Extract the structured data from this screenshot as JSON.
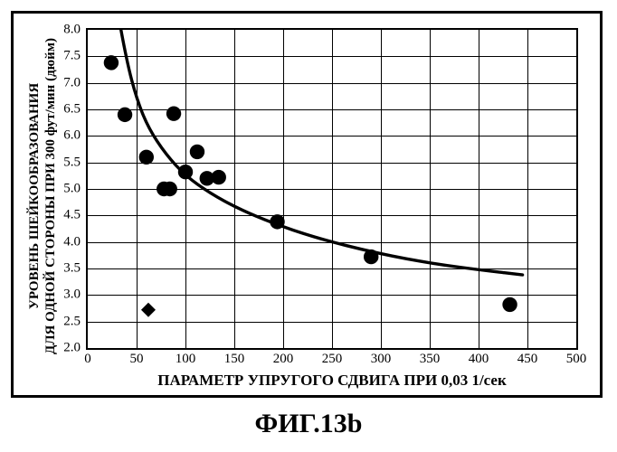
{
  "chart": {
    "type": "scatter",
    "xlim": [
      0,
      500
    ],
    "ylim": [
      2.0,
      8.0
    ],
    "xtick_step": 50,
    "ytick_step": 0.5,
    "xticks": [
      0,
      50,
      100,
      150,
      200,
      250,
      300,
      350,
      400,
      450,
      500
    ],
    "yticks": [
      2.0,
      2.5,
      3.0,
      3.5,
      4.0,
      4.5,
      5.0,
      5.5,
      6.0,
      6.5,
      7.0,
      7.5,
      8.0
    ],
    "ytick_labels": [
      "2.0",
      "2.5",
      "3.0",
      "3.5",
      "4.0",
      "4.5",
      "5.0",
      "5.5",
      "6.0",
      "6.5",
      "7.0",
      "7.5",
      "8.0"
    ],
    "xtick_labels": [
      "0",
      "50",
      "100",
      "150",
      "200",
      "250",
      "300",
      "350",
      "400",
      "450",
      "500"
    ],
    "grid_color": "#000000",
    "background_color": "#ffffff",
    "frame_color": "#000000",
    "border_width_outer": 3,
    "border_width_inner": 2,
    "circle_points": [
      {
        "x": 24,
        "y": 7.38
      },
      {
        "x": 38,
        "y": 6.4
      },
      {
        "x": 60,
        "y": 5.6
      },
      {
        "x": 88,
        "y": 6.42
      },
      {
        "x": 78,
        "y": 5.0
      },
      {
        "x": 84,
        "y": 5.0
      },
      {
        "x": 100,
        "y": 5.32
      },
      {
        "x": 112,
        "y": 5.7
      },
      {
        "x": 122,
        "y": 5.2
      },
      {
        "x": 134,
        "y": 5.22
      },
      {
        "x": 194,
        "y": 4.38
      },
      {
        "x": 290,
        "y": 3.72
      },
      {
        "x": 432,
        "y": 2.82
      }
    ],
    "diamond_points": [
      {
        "x": 62,
        "y": 2.72
      }
    ],
    "circle": {
      "radius": 8.2,
      "fill": "#000000"
    },
    "diamond": {
      "half": 8,
      "fill": "#000000"
    },
    "trend_curve": {
      "stroke": "#000000",
      "stroke_width": 3.4,
      "points": [
        {
          "x": 34,
          "y": 8.0
        },
        {
          "x": 40,
          "y": 7.4
        },
        {
          "x": 50,
          "y": 6.7
        },
        {
          "x": 62,
          "y": 6.15
        },
        {
          "x": 80,
          "y": 5.65
        },
        {
          "x": 100,
          "y": 5.25
        },
        {
          "x": 125,
          "y": 4.92
        },
        {
          "x": 155,
          "y": 4.62
        },
        {
          "x": 190,
          "y": 4.35
        },
        {
          "x": 230,
          "y": 4.1
        },
        {
          "x": 275,
          "y": 3.88
        },
        {
          "x": 325,
          "y": 3.68
        },
        {
          "x": 380,
          "y": 3.52
        },
        {
          "x": 445,
          "y": 3.38
        }
      ]
    },
    "xlabel": "ПАРАМЕТР УПРУГОГО СДВИГА ПРИ 0,03 1/сек",
    "ylabel_line1": "УРОВЕНЬ ШЕЙКООБРАЗОВАНИЯ",
    "ylabel_line2": "ДЛЯ ОДНОЙ СТОРОНЫ ПРИ 300 фут/мин (дюйм)",
    "xlabel_fontsize": 17,
    "ylabel_fontsize": 15,
    "tick_fontsize": 15
  },
  "caption": "ФИГ.13b",
  "caption_fontsize": 30
}
